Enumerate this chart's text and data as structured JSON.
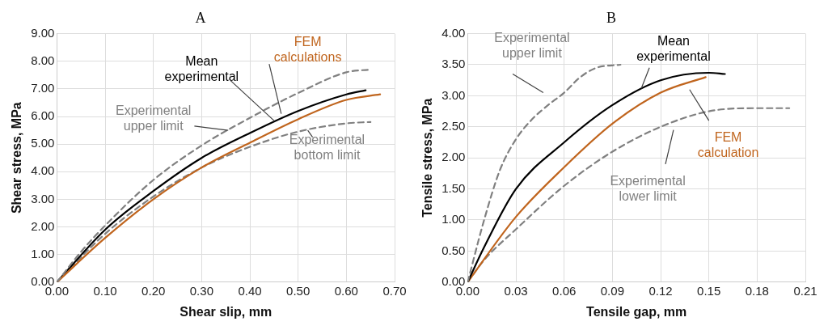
{
  "chart_data": [
    {
      "type": "line",
      "title": "A",
      "xlabel": "Shear slip, mm",
      "ylabel": "Shear stress, MPa",
      "xlim": [
        0,
        0.7
      ],
      "ylim": [
        0,
        9
      ],
      "xticks": [
        {
          "value": 0,
          "label": "0.00"
        },
        {
          "value": 0.1,
          "label": "0.10"
        },
        {
          "value": 0.2,
          "label": "0.20"
        },
        {
          "value": 0.3,
          "label": "0.30"
        },
        {
          "value": 0.4,
          "label": "0.40"
        },
        {
          "value": 0.5,
          "label": "0.50"
        },
        {
          "value": 0.6,
          "label": "0.60"
        },
        {
          "value": 0.7,
          "label": "0.70"
        }
      ],
      "yticks": [
        {
          "value": 0,
          "label": "0.00"
        },
        {
          "value": 1,
          "label": "1.00"
        },
        {
          "value": 2,
          "label": "2.00"
        },
        {
          "value": 3,
          "label": "3.00"
        },
        {
          "value": 4,
          "label": "4.00"
        },
        {
          "value": 5,
          "label": "5.00"
        },
        {
          "value": 6,
          "label": "6.00"
        },
        {
          "value": 7,
          "label": "7.00"
        },
        {
          "value": 8,
          "label": "8.00"
        },
        {
          "value": 9,
          "label": "9.00"
        }
      ],
      "grid": true,
      "legend": false,
      "marker": "none",
      "series": [
        {
          "name": "Experimental upper limit",
          "color": "#808080",
          "line_style": "dashed",
          "x": [
            0,
            0.05,
            0.1,
            0.2,
            0.3,
            0.4,
            0.5,
            0.6,
            0.65
          ],
          "values": [
            0,
            1.1,
            2.05,
            3.7,
            4.95,
            5.95,
            6.85,
            7.6,
            7.7
          ]
        },
        {
          "name": "FEM calculations",
          "color": "#c0651e",
          "line_style": "solid",
          "x": [
            0,
            0.1,
            0.2,
            0.3,
            0.4,
            0.5,
            0.6,
            0.67
          ],
          "values": [
            0,
            1.6,
            3.0,
            4.15,
            5.05,
            5.9,
            6.6,
            6.8
          ]
        },
        {
          "name": "Mean experimental",
          "color": "#000000",
          "line_style": "solid",
          "x": [
            0,
            0.1,
            0.2,
            0.3,
            0.4,
            0.5,
            0.6,
            0.64
          ],
          "values": [
            0,
            1.9,
            3.3,
            4.5,
            5.4,
            6.2,
            6.8,
            6.95
          ]
        },
        {
          "name": "Experimental bottom limit",
          "color": "#808080",
          "line_style": "dashed",
          "x": [
            0,
            0.1,
            0.2,
            0.3,
            0.4,
            0.5,
            0.6,
            0.65
          ],
          "values": [
            0,
            1.75,
            3.1,
            4.15,
            4.9,
            5.45,
            5.75,
            5.8
          ]
        }
      ]
    },
    {
      "type": "line",
      "title": "B",
      "xlabel": "Tensile gap, mm",
      "ylabel": "Tensile stress, MPa",
      "xlim": [
        0,
        0.21
      ],
      "ylim": [
        0,
        4
      ],
      "xticks": [
        {
          "value": 0,
          "label": "0.00"
        },
        {
          "value": 0.03,
          "label": "0.03"
        },
        {
          "value": 0.06,
          "label": "0.06"
        },
        {
          "value": 0.09,
          "label": "0.09"
        },
        {
          "value": 0.12,
          "label": "0.12"
        },
        {
          "value": 0.15,
          "label": "0.15"
        },
        {
          "value": 0.18,
          "label": "0.18"
        },
        {
          "value": 0.21,
          "label": "0.21"
        }
      ],
      "yticks": [
        {
          "value": 0,
          "label": "0.00"
        },
        {
          "value": 0.5,
          "label": "0.50"
        },
        {
          "value": 1,
          "label": "1.00"
        },
        {
          "value": 1.5,
          "label": "1.50"
        },
        {
          "value": 2,
          "label": "2.00"
        },
        {
          "value": 2.5,
          "label": "2.50"
        },
        {
          "value": 3,
          "label": "3.00"
        },
        {
          "value": 3.5,
          "label": "3.50"
        },
        {
          "value": 4,
          "label": "4.00"
        }
      ],
      "grid": true,
      "legend": false,
      "marker": "none",
      "series": [
        {
          "name": "Experimental upper limit",
          "color": "#808080",
          "line_style": "dashed",
          "x": [
            0,
            0.01,
            0.02,
            0.03,
            0.04,
            0.05,
            0.06,
            0.07,
            0.08,
            0.095
          ],
          "values": [
            0,
            0.98,
            1.8,
            2.3,
            2.62,
            2.85,
            3.05,
            3.3,
            3.45,
            3.5
          ]
        },
        {
          "name": "Mean experimental",
          "color": "#000000",
          "line_style": "solid",
          "x": [
            0,
            0.01,
            0.03,
            0.06,
            0.09,
            0.12,
            0.15,
            0.16
          ],
          "values": [
            0,
            0.55,
            1.5,
            2.25,
            2.85,
            3.25,
            3.37,
            3.35
          ]
        },
        {
          "name": "FEM calculation",
          "color": "#c0651e",
          "line_style": "solid",
          "x": [
            0,
            0.03,
            0.06,
            0.09,
            0.12,
            0.148
          ],
          "values": [
            0,
            1.05,
            1.85,
            2.55,
            3.05,
            3.3
          ]
        },
        {
          "name": "Experimental lower limit",
          "color": "#808080",
          "line_style": "dashed",
          "x": [
            0,
            0.01,
            0.03,
            0.06,
            0.09,
            0.12,
            0.15,
            0.18,
            0.2
          ],
          "values": [
            0,
            0.35,
            0.85,
            1.55,
            2.1,
            2.5,
            2.75,
            2.8,
            2.8
          ]
        }
      ]
    }
  ]
}
